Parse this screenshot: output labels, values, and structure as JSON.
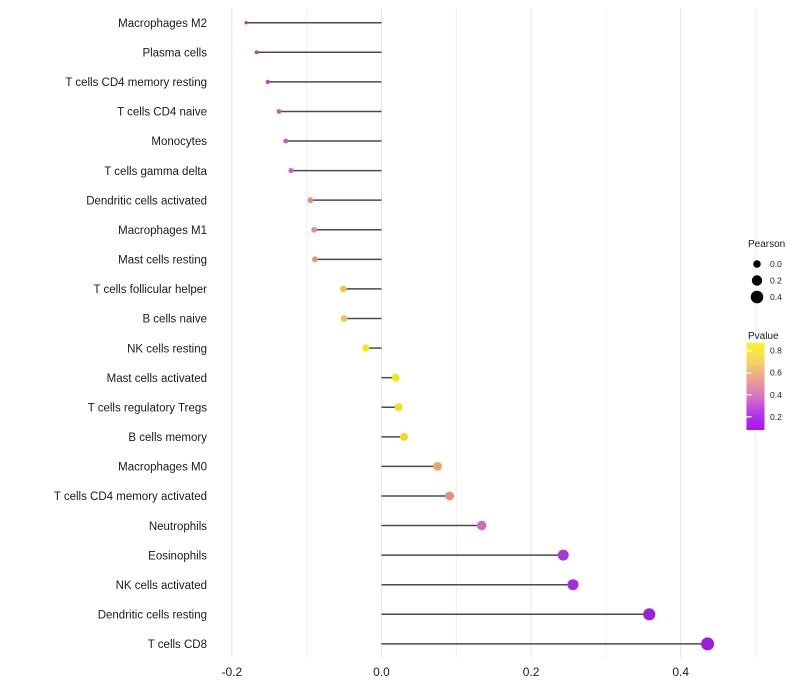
{
  "figure": {
    "background": "#ffffff"
  },
  "chart_data": {
    "type": "scatter",
    "variant": "horizontal-lollipop",
    "title": "",
    "xlabel": "",
    "ylabel": "",
    "x_axis": {
      "ticks": [
        {
          "label": "-0.2",
          "value": -0.2
        },
        {
          "label": "0.0",
          "value": 0.0
        },
        {
          "label": "0.2",
          "value": 0.2
        },
        {
          "label": "0.4",
          "value": 0.4
        }
      ],
      "minor_gridlines": [
        -0.1,
        0.1,
        0.3,
        0.5
      ],
      "range": [
        -0.223,
        0.503
      ]
    },
    "rows": [
      {
        "label": "Macrophages M2",
        "pearson": -0.181,
        "pvalue": 0.26,
        "color": "#a93ab8"
      },
      {
        "label": "Plasma cells",
        "pearson": -0.167,
        "pvalue": 0.28,
        "color": "#b440c0"
      },
      {
        "label": "T cells CD4 memory resting",
        "pearson": -0.152,
        "pvalue": 0.28,
        "color": "#b746bd"
      },
      {
        "label": "T cells CD4 naive",
        "pearson": -0.137,
        "pvalue": 0.38,
        "color": "#c557b5"
      },
      {
        "label": "Monocytes",
        "pearson": -0.128,
        "pvalue": 0.37,
        "color": "#ca60b3"
      },
      {
        "label": "T cells gamma delta",
        "pearson": -0.121,
        "pvalue": 0.36,
        "color": "#cc66b0"
      },
      {
        "label": "Dendritic cells activated",
        "pearson": -0.095,
        "pvalue": 0.56,
        "color": "#e2907c"
      },
      {
        "label": "Macrophages M1",
        "pearson": -0.09,
        "pvalue": 0.55,
        "color": "#e2927e"
      },
      {
        "label": "Mast cells resting",
        "pearson": -0.089,
        "pvalue": 0.55,
        "color": "#e29480"
      },
      {
        "label": "T cells follicular helper",
        "pearson": -0.051,
        "pvalue": 0.72,
        "color": "#eec14e"
      },
      {
        "label": "B cells naive",
        "pearson": -0.05,
        "pvalue": 0.71,
        "color": "#eec350"
      },
      {
        "label": "NK cells resting",
        "pearson": -0.021,
        "pvalue": 0.88,
        "color": "#f2e716"
      },
      {
        "label": "Mast cells activated",
        "pearson": 0.019,
        "pvalue": 0.86,
        "color": "#f2e31c"
      },
      {
        "label": "T cells regulatory  Tregs",
        "pearson": 0.023,
        "pvalue": 0.85,
        "color": "#f1e020"
      },
      {
        "label": "B cells memory",
        "pearson": 0.03,
        "pvalue": 0.83,
        "color": "#f0dc24"
      },
      {
        "label": "Macrophages M0",
        "pearson": 0.075,
        "pvalue": 0.63,
        "color": "#eda765"
      },
      {
        "label": "T cells CD4 memory activated",
        "pearson": 0.091,
        "pvalue": 0.54,
        "color": "#e29181"
      },
      {
        "label": "Neutrophils",
        "pearson": 0.134,
        "pvalue": 0.33,
        "color": "#cf6bbe"
      },
      {
        "label": "Eosinophils",
        "pearson": 0.243,
        "pvalue": 0.17,
        "color": "#a637d3"
      },
      {
        "label": "NK cells activated",
        "pearson": 0.256,
        "pvalue": 0.16,
        "color": "#a52fd4"
      },
      {
        "label": "Dendritic cells resting",
        "pearson": 0.358,
        "pvalue": 0.1,
        "color": "#9c22d8"
      },
      {
        "label": "T cells CD8",
        "pearson": 0.436,
        "pvalue": 0.08,
        "color": "#9c1ed7"
      }
    ],
    "legends": {
      "size": {
        "title": "Pearson",
        "dot_color": "#000000",
        "entries": [
          {
            "label": "0.0",
            "value": 0.0
          },
          {
            "label": "0.2",
            "value": 0.2
          },
          {
            "label": "0.4",
            "value": 0.4
          }
        ]
      },
      "color": {
        "title": "Pvalue",
        "ticks": [
          {
            "label": "0.8",
            "value": 0.8
          },
          {
            "label": "0.6",
            "value": 0.6
          },
          {
            "label": "0.4",
            "value": 0.4
          },
          {
            "label": "0.2",
            "value": 0.2
          }
        ],
        "bar_value_range_top_to_bottom": [
          0.87,
          0.08
        ],
        "gradient_top_to_bottom": [
          "#f9f32b",
          "#f7e44a",
          "#f3cb6c",
          "#edab8b",
          "#e48fa8",
          "#d971c5",
          "#c148de",
          "#ae2aea",
          "#a816f2"
        ]
      }
    },
    "style": {
      "segment_color": "#4a4a4a",
      "gridline_major": "#e4e4e4",
      "gridline_minor": "#f0f0f0",
      "axis_text_color": "#1a1a1a",
      "legend_text_color": "#1a1a1a"
    },
    "grid": "vertical-only",
    "legend_position": "right"
  }
}
